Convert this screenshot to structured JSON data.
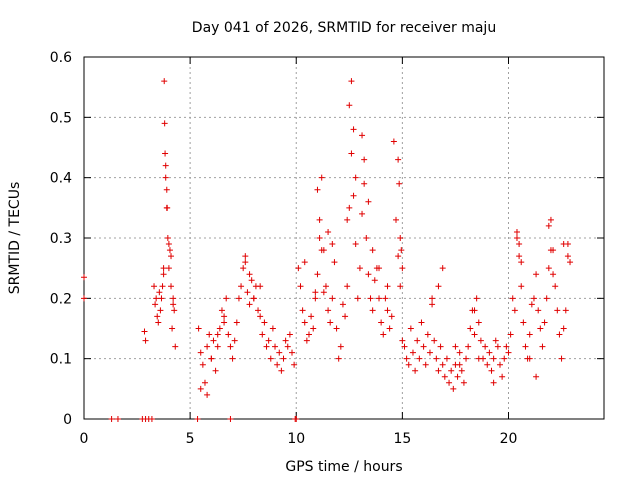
{
  "chart_data": {
    "type": "scatter",
    "title": "Day 041 of 2026, SRMTID for receiver maju",
    "xlabel": "GPS time / hours",
    "ylabel": "SRMTID / TECUs",
    "xlim": [
      0,
      24.5
    ],
    "ylim": [
      0,
      0.6
    ],
    "xticks": [
      0,
      5,
      10,
      15,
      20
    ],
    "yticks": [
      0,
      0.1,
      0.2,
      0.3,
      0.4,
      0.5,
      0.6
    ],
    "xtick_labels": [
      "0",
      "5",
      "10",
      "15",
      "20"
    ],
    "ytick_labels": [
      "0",
      "0.1",
      "0.2",
      "0.3",
      "0.4",
      "0.5",
      "0.6"
    ],
    "grid": true,
    "marker": "plus",
    "color": "#e00000",
    "series": [
      {
        "name": "SRMTID",
        "x": [
          0.0,
          0.0,
          1.3,
          1.6,
          2.75,
          2.9,
          3.05,
          3.2,
          5.35,
          6.9,
          9.95,
          10.0,
          2.85,
          2.9,
          3.3,
          3.35,
          3.4,
          3.45,
          3.5,
          3.55,
          3.6,
          3.65,
          3.7,
          3.75,
          3.78,
          3.8,
          3.82,
          3.85,
          3.9,
          3.92,
          3.95,
          4.0,
          4.05,
          4.1,
          4.15,
          4.2,
          4.25,
          4.3,
          5.4,
          5.5,
          5.6,
          5.7,
          5.8,
          5.9,
          6.0,
          6.1,
          6.2,
          6.3,
          6.4,
          6.5,
          6.6,
          6.7,
          6.8,
          6.9,
          7.0,
          7.1,
          7.2,
          7.3,
          7.4,
          7.5,
          7.6,
          7.7,
          7.8,
          7.9,
          8.0,
          8.1,
          8.2,
          8.3,
          8.4,
          8.5,
          8.6,
          8.7,
          8.8,
          8.9,
          9.0,
          9.1,
          9.2,
          9.3,
          9.4,
          9.5,
          9.6,
          9.7,
          9.8,
          9.9,
          10.1,
          10.2,
          10.3,
          10.4,
          10.5,
          10.6,
          10.7,
          10.8,
          10.9,
          11.0,
          11.1,
          11.2,
          11.3,
          11.4,
          11.5,
          11.6,
          11.7,
          11.8,
          11.9,
          12.0,
          12.1,
          12.2,
          12.3,
          12.4,
          12.5,
          12.6,
          12.7,
          12.8,
          12.9,
          13.0,
          13.1,
          13.2,
          13.3,
          13.4,
          13.5,
          13.6,
          13.7,
          13.8,
          13.9,
          14.0,
          14.1,
          14.2,
          14.3,
          14.4,
          14.5,
          14.6,
          14.7,
          14.8,
          14.9,
          15.0,
          15.1,
          15.2,
          15.3,
          15.4,
          15.5,
          15.6,
          15.7,
          15.8,
          15.9,
          16.0,
          16.1,
          16.2,
          16.3,
          16.4,
          16.5,
          16.6,
          16.7,
          16.8,
          16.9,
          17.0,
          17.1,
          17.2,
          17.3,
          17.4,
          17.5,
          17.6,
          17.7,
          17.8,
          17.9,
          18.0,
          18.1,
          18.2,
          18.3,
          18.4,
          18.5,
          18.6,
          18.7,
          18.8,
          18.9,
          19.0,
          19.1,
          19.2,
          19.3,
          19.4,
          19.5,
          19.6,
          19.7,
          19.8,
          19.9,
          20.0,
          20.1,
          20.2,
          20.3,
          20.4,
          20.5,
          20.6,
          20.7,
          20.8,
          20.9,
          21.0,
          21.1,
          21.2,
          21.3,
          21.4,
          21.5,
          21.6,
          21.7,
          21.8,
          21.9,
          22.0,
          22.1,
          22.2,
          22.3,
          22.4,
          22.5,
          22.6,
          22.7,
          22.8,
          22.9,
          3.75,
          3.85,
          3.9,
          4.0,
          4.1,
          4.2,
          5.5,
          5.8,
          6.0,
          6.3,
          6.6,
          7.6,
          7.8,
          8.0,
          8.3,
          10.4,
          10.9,
          11.0,
          11.1,
          11.2,
          11.3,
          11.5,
          11.7,
          12.4,
          12.5,
          12.6,
          12.7,
          12.8,
          13.1,
          13.2,
          13.4,
          13.6,
          13.9,
          14.3,
          14.8,
          14.85,
          14.9,
          14.95,
          15.0,
          16.4,
          16.7,
          16.9,
          17.5,
          17.7,
          18.4,
          18.6,
          19.3,
          20.4,
          20.5,
          20.6,
          21.0,
          21.3,
          21.9,
          22.0,
          22.1,
          22.6,
          22.8
        ],
        "y": [
          0.235,
          0.2,
          0.0,
          0.0,
          0.0,
          0.0,
          0.0,
          0.0,
          0.0,
          0.0,
          0.0,
          0.0,
          0.145,
          0.13,
          0.22,
          0.19,
          0.2,
          0.17,
          0.16,
          0.21,
          0.18,
          0.2,
          0.22,
          0.25,
          0.56,
          0.49,
          0.44,
          0.42,
          0.38,
          0.35,
          0.3,
          0.25,
          0.28,
          0.22,
          0.15,
          0.2,
          0.18,
          0.12,
          0.15,
          0.11,
          0.09,
          0.06,
          0.12,
          0.14,
          0.1,
          0.13,
          0.08,
          0.12,
          0.15,
          0.18,
          0.16,
          0.2,
          0.14,
          0.12,
          0.1,
          0.13,
          0.16,
          0.2,
          0.22,
          0.25,
          0.27,
          0.21,
          0.19,
          0.23,
          0.2,
          0.22,
          0.18,
          0.17,
          0.14,
          0.16,
          0.12,
          0.13,
          0.1,
          0.15,
          0.12,
          0.09,
          0.11,
          0.08,
          0.1,
          0.13,
          0.12,
          0.14,
          0.11,
          0.09,
          0.25,
          0.22,
          0.18,
          0.16,
          0.13,
          0.14,
          0.17,
          0.15,
          0.2,
          0.24,
          0.3,
          0.4,
          0.28,
          0.22,
          0.18,
          0.16,
          0.2,
          0.26,
          0.15,
          0.1,
          0.12,
          0.19,
          0.17,
          0.22,
          0.35,
          0.56,
          0.48,
          0.4,
          0.2,
          0.25,
          0.47,
          0.43,
          0.3,
          0.24,
          0.2,
          0.18,
          0.23,
          0.25,
          0.2,
          0.16,
          0.14,
          0.2,
          0.18,
          0.15,
          0.17,
          0.46,
          0.33,
          0.27,
          0.22,
          0.13,
          0.12,
          0.1,
          0.09,
          0.15,
          0.11,
          0.08,
          0.13,
          0.1,
          0.16,
          0.12,
          0.09,
          0.14,
          0.11,
          0.2,
          0.13,
          0.1,
          0.08,
          0.12,
          0.09,
          0.07,
          0.1,
          0.06,
          0.08,
          0.05,
          0.09,
          0.07,
          0.11,
          0.08,
          0.06,
          0.1,
          0.12,
          0.15,
          0.18,
          0.14,
          0.2,
          0.16,
          0.13,
          0.1,
          0.12,
          0.09,
          0.11,
          0.08,
          0.1,
          0.13,
          0.12,
          0.09,
          0.07,
          0.1,
          0.12,
          0.11,
          0.14,
          0.2,
          0.18,
          0.3,
          0.27,
          0.22,
          0.16,
          0.12,
          0.1,
          0.14,
          0.19,
          0.2,
          0.24,
          0.18,
          0.15,
          0.12,
          0.16,
          0.2,
          0.25,
          0.33,
          0.28,
          0.22,
          0.18,
          0.14,
          0.1,
          0.15,
          0.18,
          0.29,
          0.26,
          0.24,
          0.4,
          0.35,
          0.29,
          0.27,
          0.19,
          0.05,
          0.04,
          0.1,
          0.14,
          0.17,
          0.26,
          0.24,
          0.2,
          0.22,
          0.26,
          0.21,
          0.38,
          0.33,
          0.28,
          0.21,
          0.31,
          0.29,
          0.33,
          0.52,
          0.44,
          0.37,
          0.29,
          0.34,
          0.39,
          0.36,
          0.28,
          0.25,
          0.22,
          0.43,
          0.39,
          0.3,
          0.28,
          0.25,
          0.19,
          0.22,
          0.25,
          0.12,
          0.09,
          0.18,
          0.1,
          0.06,
          0.31,
          0.29,
          0.26,
          0.1,
          0.07,
          0.32,
          0.28,
          0.24,
          0.29,
          0.27
        ]
      }
    ]
  }
}
